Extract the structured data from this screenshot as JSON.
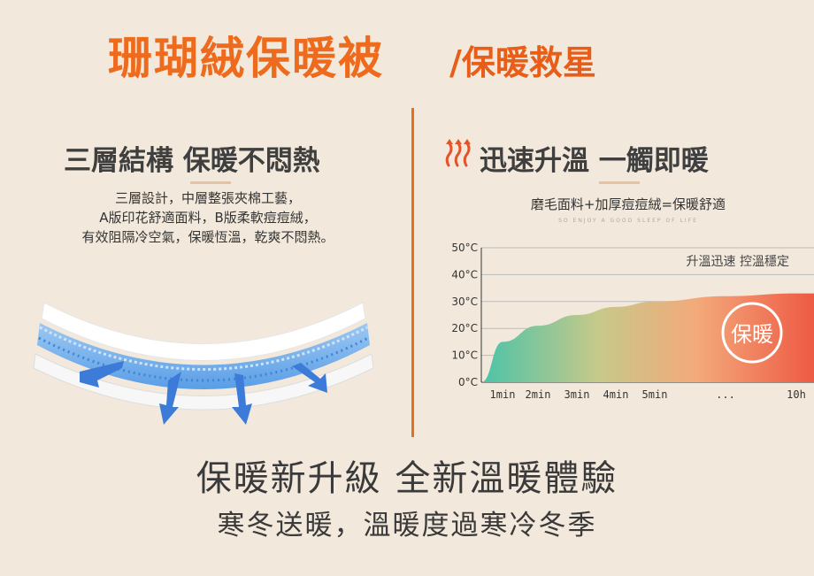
{
  "header": {
    "title": "珊瑚絨保暖被",
    "subtitle": "/保暖救星"
  },
  "left_section": {
    "title": "三層結構 保暖不悶熱",
    "lines": [
      "三層設計，中層整張夾棉工藝，",
      "A版印花舒適面料，B版柔軟痘痘絨，",
      "有效阻隔冷空氣，保暖恆溫，乾爽不悶熱。"
    ]
  },
  "right_section": {
    "title": "迅速升溫 一觸即暖",
    "desc": "磨毛面料+加厚痘痘絨=保暖舒適",
    "caption": "SO ENJOY A GOOD SLEEP OF LIFE"
  },
  "chart_data": {
    "type": "area",
    "legend_text": "升溫迅速 控溫穩定",
    "badge_text": "保暖",
    "y_tick_labels": [
      "50°C",
      "40°C",
      "30°C",
      "20°C",
      "10°C",
      "0°C"
    ],
    "x_tick_labels": [
      "1min",
      "2min",
      "3min",
      "4min",
      "5min",
      "...",
      "10h"
    ],
    "ylim": [
      0,
      50
    ],
    "x": [
      "0",
      "1min",
      "2min",
      "3min",
      "4min",
      "5min",
      "...",
      "10h"
    ],
    "series": [
      {
        "values": [
          0,
          15,
          21,
          25,
          28,
          30,
          32,
          33
        ]
      }
    ],
    "gradient_colors": [
      "#4cc3a8",
      "#c6c98a",
      "#f3a97a",
      "#ee5a44"
    ]
  },
  "footer": {
    "slogan_main": "保暖新升級 全新溫暖體驗",
    "slogan_sub": "寒冬送暖，溫暖度過寒冷冬季"
  }
}
